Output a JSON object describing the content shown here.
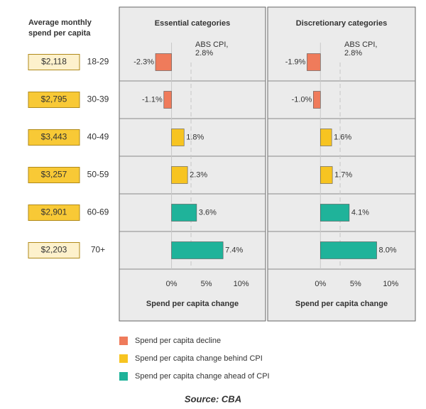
{
  "spend": {
    "title": [
      "Average monthly",
      "spend per capita"
    ],
    "categories": [
      "18-29",
      "30-39",
      "40-49",
      "50-59",
      "60-69",
      "70+"
    ],
    "values": [
      2118,
      2795,
      3443,
      3257,
      2901,
      2203
    ],
    "value_labels": [
      "$2,118",
      "$2,795",
      "$3,443",
      "$3,257",
      "$2,901",
      "$2,203"
    ],
    "colors": [
      "#fdf1cc",
      "#f8c936",
      "#f8c936",
      "#f8c936",
      "#f8c936",
      "#fdf1cc"
    ]
  },
  "chart_data": [
    {
      "type": "bar",
      "orientation": "horizontal",
      "title": "Essential categories",
      "values": [
        -2.3,
        -1.1,
        1.8,
        2.3,
        3.6,
        7.4
      ],
      "value_labels": [
        "-2.3%",
        "-1.1%",
        "1.8%",
        "2.3%",
        "3.6%",
        "7.4%"
      ],
      "colors": [
        "#ef7b5b",
        "#ef7b5b",
        "#f7c421",
        "#f7c421",
        "#1fb39a",
        "#1fb39a"
      ],
      "xlim": [
        -7.5,
        13.5
      ],
      "xticks": [
        {
          "value": 0,
          "label": "0%"
        },
        {
          "value": 5,
          "label": "5%"
        },
        {
          "value": 10,
          "label": "10%"
        }
      ],
      "xlabel": "Spend per capita change",
      "annotation": {
        "lines": [
          "ABS CPI,",
          "2.8%"
        ],
        "value": 2.8
      }
    },
    {
      "type": "bar",
      "orientation": "horizontal",
      "title": "Discretionary categories",
      "values": [
        -1.9,
        -1.0,
        1.6,
        1.7,
        4.1,
        8.0
      ],
      "value_labels": [
        "-1.9%",
        "-1.0%",
        "1.6%",
        "1.7%",
        "4.1%",
        "8.0%"
      ],
      "colors": [
        "#ef7b5b",
        "#ef7b5b",
        "#f7c421",
        "#f7c421",
        "#1fb39a",
        "#1fb39a"
      ],
      "xlim": [
        -7.5,
        13.5
      ],
      "xticks": [
        {
          "value": 0,
          "label": "0%"
        },
        {
          "value": 5,
          "label": "5%"
        },
        {
          "value": 10,
          "label": "10%"
        }
      ],
      "xlabel": "Spend per capita change",
      "annotation": {
        "lines": [
          "ABS CPI,",
          "2.8%"
        ],
        "value": 2.8
      }
    }
  ],
  "legend": [
    {
      "label": "Spend per capita decline",
      "color": "#ef7b5b"
    },
    {
      "label": "Spend per capita change behind CPI",
      "color": "#f7c421"
    },
    {
      "label": "Spend per capita change ahead of CPI",
      "color": "#1fb39a"
    }
  ],
  "source": "Source: CBA"
}
